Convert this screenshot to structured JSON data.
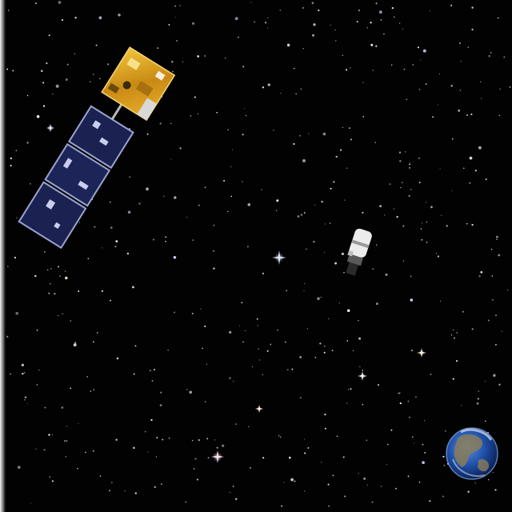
{
  "scene": {
    "description_free": true,
    "background_color": "#020203",
    "star_colors": [
      "#ffffff",
      "#e8f0ff",
      "#fff3e0",
      "#d9e6ff",
      "#ffe9f4"
    ],
    "objects": [
      {
        "kind": "satellite",
        "panel_color": "#1b2150",
        "bus_color": "#d9a21f"
      },
      {
        "kind": "spacecraft",
        "body_color": "#e8e8e8"
      },
      {
        "kind": "planet-earth",
        "ocean_color": "#1f4fa8",
        "land_color": "#8a7d5a"
      }
    ]
  }
}
